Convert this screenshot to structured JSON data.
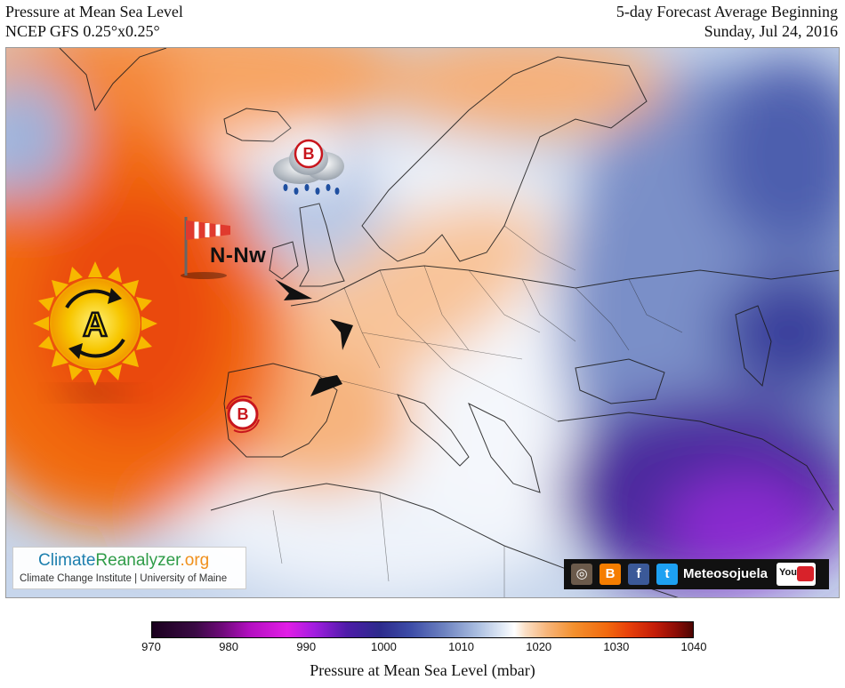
{
  "header": {
    "title": "Pressure at Mean Sea Level",
    "model": "NCEP GFS 0.25°x0.25°",
    "forecast": "5-day Forecast Average Beginning",
    "date": "Sunday, Jul 24, 2016"
  },
  "map": {
    "annotations": {
      "high_label": "A",
      "low_label": "B",
      "wind_direction": "N-Nw"
    },
    "colors": {
      "high_pressure": "#f26a0e",
      "low_pressure": "#6a1fb0",
      "neutral": "#ffffff"
    }
  },
  "logo": {
    "part1": "Climate",
    "part2": "Reanalyzer",
    "part3": ".org",
    "subtitle": "Climate Change Institute | University of Maine"
  },
  "social": {
    "name": "Meteosojuela",
    "icons": [
      "instagram-icon",
      "blogger-icon",
      "facebook-icon",
      "twitter-icon",
      "youtube-icon"
    ],
    "youtube_label": "You"
  },
  "colorbar": {
    "ticks": [
      "970",
      "980",
      "990",
      "1000",
      "1010",
      "1020",
      "1030",
      "1040"
    ],
    "title": "Pressure at Mean Sea Level (mbar)",
    "range": [
      970,
      1040
    ]
  }
}
